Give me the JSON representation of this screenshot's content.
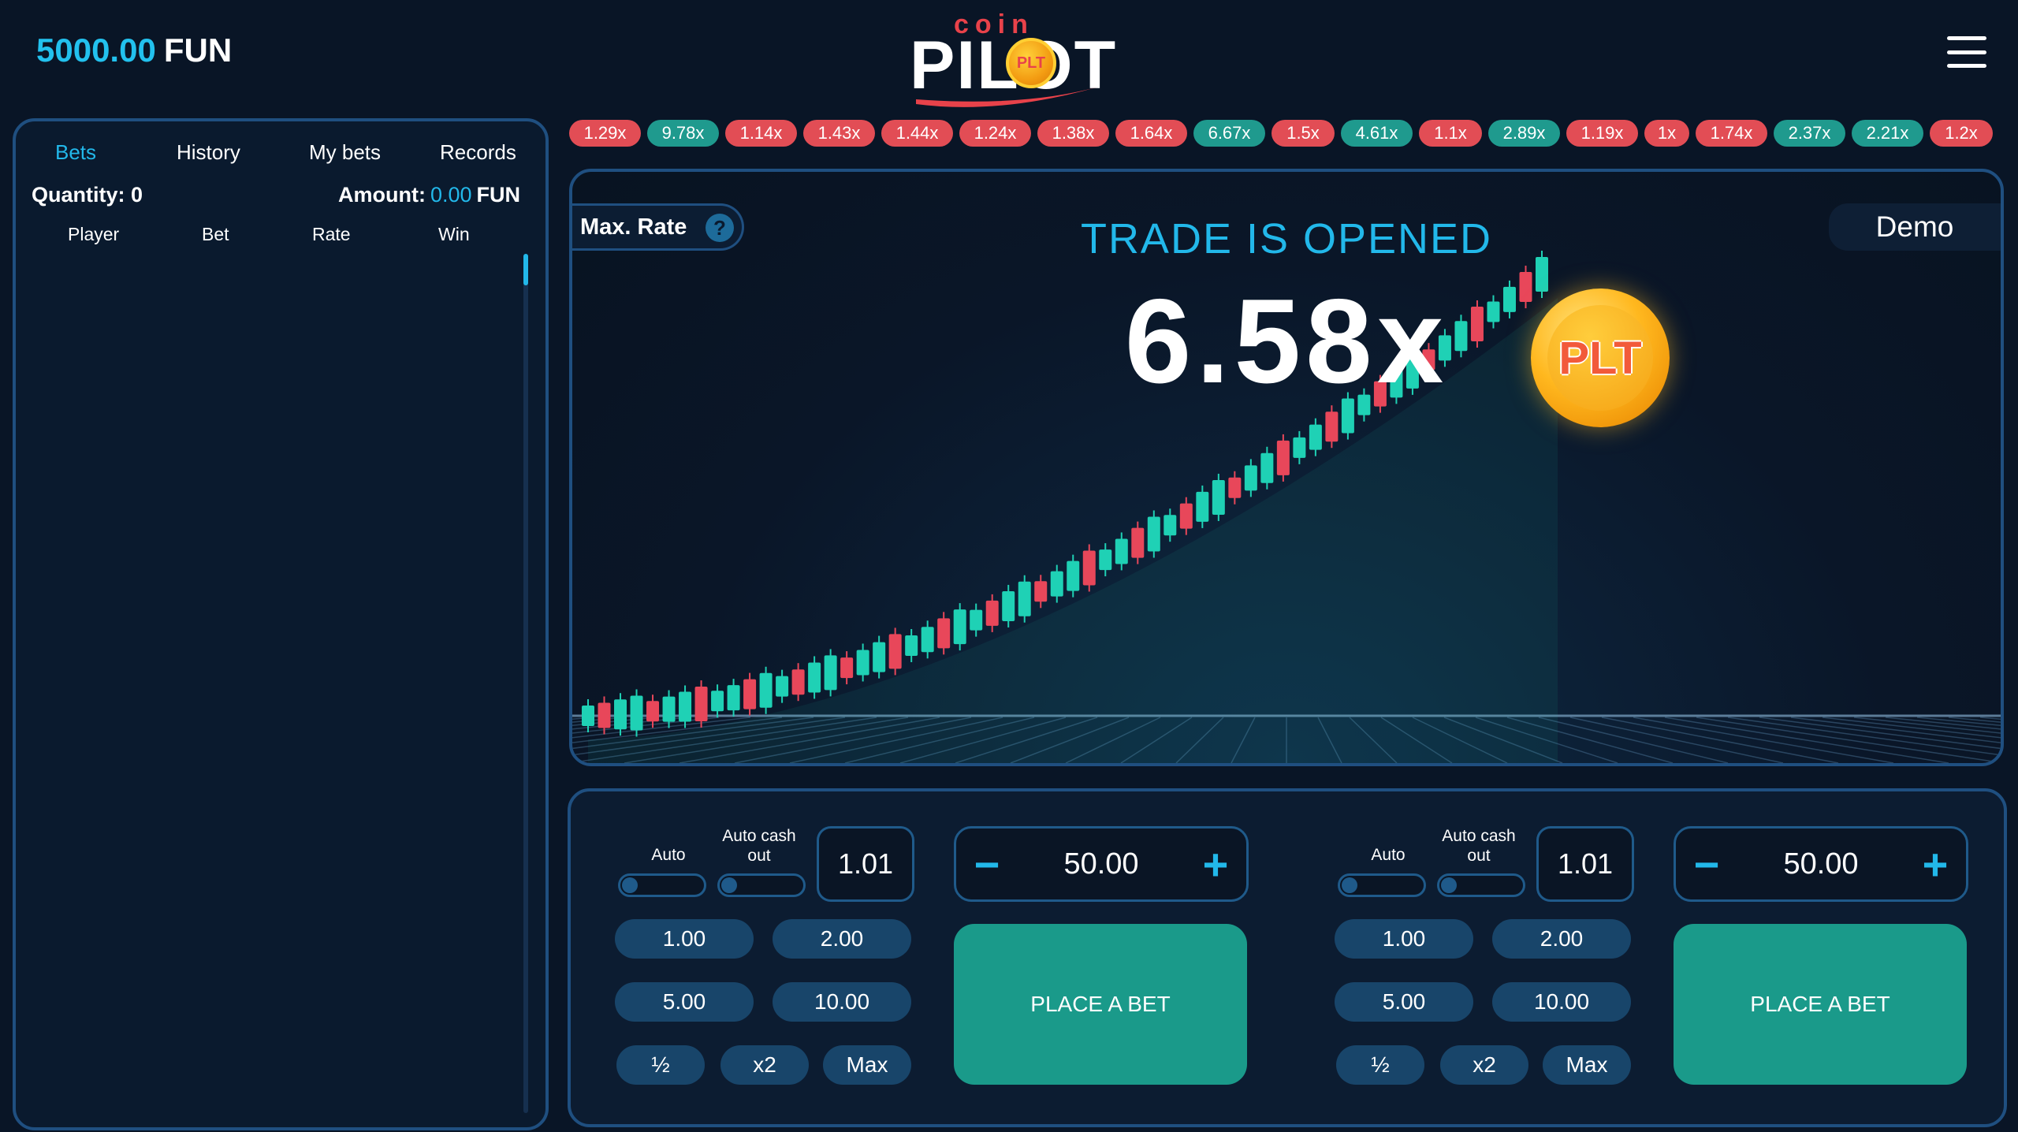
{
  "header": {
    "balance_amount": "5000.00",
    "balance_currency": "FUN",
    "logo_top": "coin",
    "logo_main": "PILOT",
    "logo_coin": "PLT"
  },
  "left_panel": {
    "tabs": [
      {
        "label": "Bets",
        "active": true
      },
      {
        "label": "History",
        "active": false
      },
      {
        "label": "My bets",
        "active": false
      },
      {
        "label": "Records",
        "active": false
      }
    ],
    "quantity_label": "Quantity:",
    "quantity_value": "0",
    "amount_label": "Amount:",
    "amount_value": "0.00",
    "amount_currency": "FUN",
    "columns": [
      "Player",
      "Bet",
      "Rate",
      "Win"
    ]
  },
  "history_strip": [
    {
      "label": "1.29x",
      "color": "red"
    },
    {
      "label": "9.78x",
      "color": "green"
    },
    {
      "label": "1.14x",
      "color": "red"
    },
    {
      "label": "1.43x",
      "color": "red"
    },
    {
      "label": "1.44x",
      "color": "red"
    },
    {
      "label": "1.24x",
      "color": "red"
    },
    {
      "label": "1.38x",
      "color": "red"
    },
    {
      "label": "1.64x",
      "color": "red"
    },
    {
      "label": "6.67x",
      "color": "green"
    },
    {
      "label": "1.5x",
      "color": "red"
    },
    {
      "label": "4.61x",
      "color": "green"
    },
    {
      "label": "1.1x",
      "color": "red"
    },
    {
      "label": "2.89x",
      "color": "green"
    },
    {
      "label": "1.19x",
      "color": "red"
    },
    {
      "label": "1x",
      "color": "red"
    },
    {
      "label": "1.74x",
      "color": "red"
    },
    {
      "label": "2.37x",
      "color": "green"
    },
    {
      "label": "2.21x",
      "color": "green"
    },
    {
      "label": "1.2x",
      "color": "red"
    }
  ],
  "game": {
    "max_rate_label": "Max. Rate",
    "help_symbol": "?",
    "mode_label": "Demo",
    "status": "TRADE IS OPENED",
    "multiplier": "6.58x",
    "coin_label": "PLT"
  },
  "bet_panels": [
    {
      "auto_label": "Auto",
      "auto_cashout_label": "Auto cash out",
      "cashout_value": "1.01",
      "stake_value": "50.00",
      "chips": [
        "1.00",
        "2.00",
        "5.00",
        "10.00"
      ],
      "half_label": "½",
      "double_label": "x2",
      "max_label": "Max",
      "place_label": "PLACE A BET"
    },
    {
      "auto_label": "Auto",
      "auto_cashout_label": "Auto cash out",
      "cashout_value": "1.01",
      "stake_value": "50.00",
      "chips": [
        "1.00",
        "2.00",
        "5.00",
        "10.00"
      ],
      "half_label": "½",
      "double_label": "x2",
      "max_label": "Max",
      "place_label": "PLACE A BET"
    }
  ],
  "colors": {
    "accent_blue": "#22b8ea",
    "candle_up": "#1fd1b5",
    "candle_down": "#e8475a",
    "place_button": "#1a9a8a"
  }
}
